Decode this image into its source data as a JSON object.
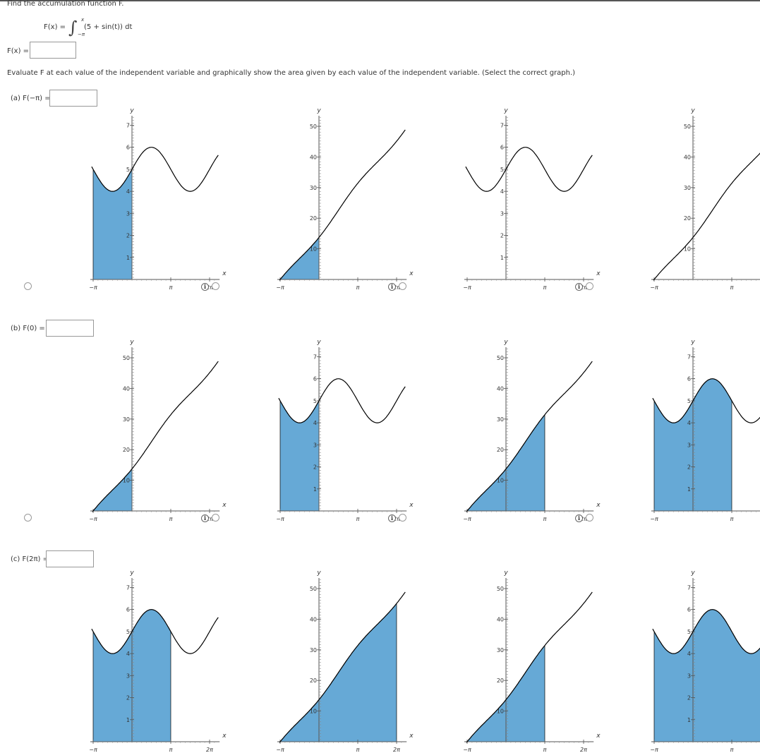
{
  "header": {
    "prompt": "Find the accumulation function F.",
    "definition": {
      "lhs": "F(x) =",
      "integrand": "(5 + sin(t)) dt",
      "upper_limit": "x",
      "lower_limit": "−π",
      "integral_sign": "∫"
    }
  },
  "answer_row": {
    "label": "F(x) =",
    "value": ""
  },
  "instruction": "Evaluate F at each value of the independent variable and graphically show the area given by each value of the independent variable. (Select the correct graph.)",
  "axis_labels": {
    "x": "x",
    "y": "y"
  },
  "x_ticks": [
    "−π",
    "π",
    "2π"
  ],
  "integrand_ticks": [
    "1",
    "2",
    "3",
    "4",
    "5",
    "6",
    "7"
  ],
  "accum_ticks": [
    "10",
    "20",
    "30",
    "40",
    "50"
  ],
  "icons": {
    "info": "info-icon",
    "radio": "radio-button"
  },
  "parts": [
    {
      "label": "(a)  F(−π) =",
      "value": "",
      "options": [
        {
          "curve": "integrand",
          "shade_to": 0
        },
        {
          "curve": "accumulation",
          "shade_to": 0
        },
        {
          "curve": "integrand",
          "shade_to": null
        },
        {
          "curve": "accumulation",
          "shade_to": null
        }
      ]
    },
    {
      "label": "(b)  F(0) =",
      "value": "",
      "options": [
        {
          "curve": "accumulation",
          "shade_to": 0
        },
        {
          "curve": "integrand",
          "shade_to": 0
        },
        {
          "curve": "accumulation",
          "shade_to": 3.14159
        },
        {
          "curve": "integrand",
          "shade_to": 3.14159
        }
      ]
    },
    {
      "label": "(c)  F(2π) =",
      "value": "",
      "options": [
        {
          "curve": "integrand",
          "shade_to": 3.14159
        },
        {
          "curve": "accumulation",
          "shade_to": 6.28319
        },
        {
          "curve": "accumulation",
          "shade_to": 3.14159
        },
        {
          "curve": "integrand",
          "shade_to": 6.28319
        }
      ]
    }
  ],
  "colors": {
    "shade": "#66a9d6",
    "curve": "#000000",
    "axis": "#555555"
  }
}
